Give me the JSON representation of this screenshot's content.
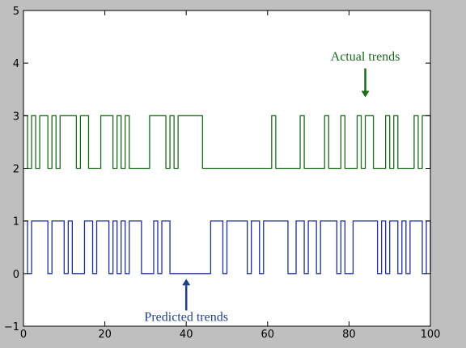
{
  "chart_data": {
    "type": "line",
    "step": true,
    "xlim": [
      0,
      100
    ],
    "ylim": [
      -1,
      5
    ],
    "x_ticks": [
      "0",
      "20",
      "40",
      "60",
      "80",
      "100"
    ],
    "y_ticks": [
      "5",
      "4",
      "3",
      "2",
      "1",
      "0",
      "−1"
    ],
    "series": [
      {
        "name": "Actual trends",
        "color": "#1a6b1a",
        "x": [
          0,
          1,
          2,
          3,
          4,
          5,
          6,
          7,
          8,
          9,
          10,
          11,
          12,
          13,
          14,
          15,
          16,
          17,
          18,
          19,
          20,
          21,
          22,
          23,
          24,
          25,
          26,
          27,
          28,
          29,
          30,
          31,
          32,
          33,
          34,
          35,
          36,
          37,
          38,
          39,
          40,
          41,
          42,
          43,
          44,
          45,
          46,
          47,
          48,
          49,
          50,
          51,
          52,
          53,
          54,
          55,
          56,
          57,
          58,
          59,
          60,
          61,
          62,
          63,
          64,
          65,
          66,
          67,
          68,
          69,
          70,
          71,
          72,
          73,
          74,
          75,
          76,
          77,
          78,
          79,
          80,
          81,
          82,
          83,
          84,
          85,
          86,
          87,
          88,
          89,
          90,
          91,
          92,
          93,
          94,
          95,
          96,
          97,
          98,
          99,
          100
        ],
        "values": [
          3,
          2,
          3,
          2,
          3,
          3,
          2,
          3,
          2,
          3,
          3,
          3,
          3,
          2,
          3,
          3,
          2,
          2,
          2,
          3,
          3,
          3,
          2,
          3,
          2,
          3,
          2,
          2,
          2,
          2,
          2,
          3,
          3,
          3,
          3,
          2,
          3,
          2,
          3,
          3,
          3,
          3,
          3,
          3,
          2,
          2,
          2,
          2,
          2,
          2,
          2,
          2,
          2,
          2,
          2,
          2,
          2,
          2,
          2,
          2,
          2,
          3,
          2,
          2,
          2,
          2,
          2,
          2,
          3,
          2,
          2,
          2,
          2,
          2,
          3,
          2,
          2,
          2,
          3,
          2,
          2,
          2,
          3,
          2,
          3,
          3,
          2,
          2,
          2,
          3,
          2,
          3,
          2,
          2,
          2,
          2,
          3,
          2,
          3,
          3,
          2
        ]
      },
      {
        "name": "Predicted trends",
        "color": "#1f2f9a",
        "x": [
          0,
          1,
          2,
          3,
          4,
          5,
          6,
          7,
          8,
          9,
          10,
          11,
          12,
          13,
          14,
          15,
          16,
          17,
          18,
          19,
          20,
          21,
          22,
          23,
          24,
          25,
          26,
          27,
          28,
          29,
          30,
          31,
          32,
          33,
          34,
          35,
          36,
          37,
          38,
          39,
          40,
          41,
          42,
          43,
          44,
          45,
          46,
          47,
          48,
          49,
          50,
          51,
          52,
          53,
          54,
          55,
          56,
          57,
          58,
          59,
          60,
          61,
          62,
          63,
          64,
          65,
          66,
          67,
          68,
          69,
          70,
          71,
          72,
          73,
          74,
          75,
          76,
          77,
          78,
          79,
          80,
          81,
          82,
          83,
          84,
          85,
          86,
          87,
          88,
          89,
          90,
          91,
          92,
          93,
          94,
          95,
          96,
          97,
          98,
          99,
          100
        ],
        "values": [
          1,
          0,
          1,
          1,
          1,
          1,
          0,
          1,
          1,
          1,
          0,
          1,
          0,
          0,
          0,
          1,
          1,
          0,
          1,
          1,
          1,
          0,
          1,
          0,
          1,
          0,
          1,
          1,
          1,
          0,
          0,
          0,
          1,
          0,
          1,
          1,
          0,
          0,
          0,
          0,
          0,
          0,
          0,
          0,
          0,
          0,
          1,
          1,
          1,
          0,
          1,
          1,
          1,
          1,
          1,
          0,
          1,
          1,
          0,
          1,
          1,
          1,
          1,
          1,
          1,
          0,
          0,
          1,
          1,
          0,
          1,
          1,
          0,
          1,
          1,
          1,
          1,
          0,
          1,
          0,
          0,
          1,
          1,
          1,
          1,
          1,
          1,
          0,
          1,
          0,
          1,
          1,
          0,
          1,
          0,
          1,
          1,
          1,
          0,
          1,
          0
        ]
      }
    ],
    "annotations": [
      {
        "text": "Actual trends",
        "series": 0,
        "color": "#1a6b1a",
        "arrow_x": 84,
        "arrow_y_from": 3.9,
        "arrow_y_to": 3.35,
        "text_x": 84,
        "text_y": 4.05
      },
      {
        "text": "Predicted trends",
        "series": 1,
        "color": "#1f3f8a",
        "arrow_x": 40,
        "arrow_y_from": -0.7,
        "arrow_y_to": -0.1,
        "text_x": 40,
        "text_y": -0.9
      }
    ]
  }
}
